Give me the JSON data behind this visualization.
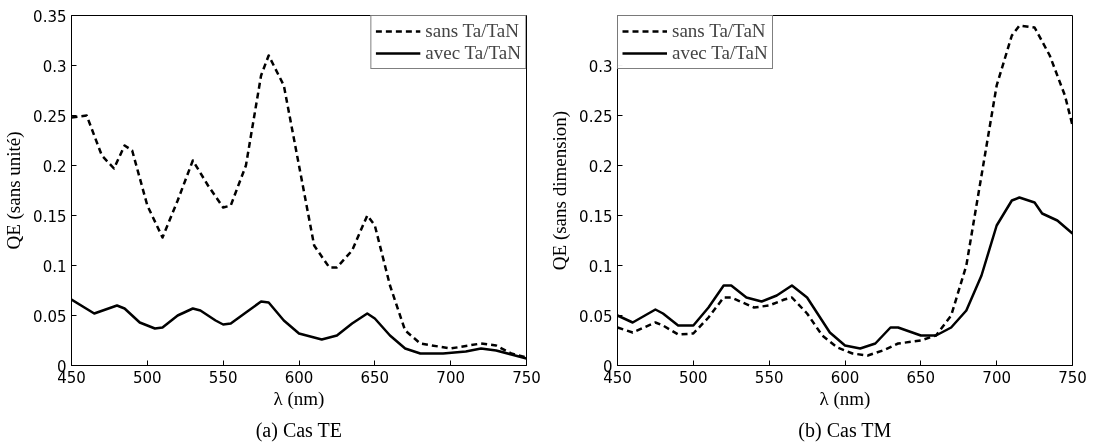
{
  "chart_data": [
    {
      "type": "line",
      "title": "(a) Cas TE",
      "xlabel": "λ (nm)",
      "ylabel": "QE (sans unité)",
      "xlim": [
        450,
        750
      ],
      "ylim": [
        0,
        0.35
      ],
      "xticks": [
        450,
        500,
        550,
        600,
        650,
        700,
        750
      ],
      "yticks": [
        0,
        0.05,
        0.1,
        0.15,
        0.2,
        0.25,
        0.3,
        0.35
      ],
      "grid": false,
      "legend": "top right",
      "series": [
        {
          "name": "sans Ta/TaN",
          "color": "#000000",
          "line_style": "dashed",
          "x": [
            450,
            460,
            470,
            478,
            485,
            490,
            500,
            510,
            520,
            530,
            540,
            550,
            555,
            565,
            575,
            580,
            590,
            600,
            610,
            620,
            625,
            635,
            645,
            650,
            660,
            670,
            680,
            700,
            720,
            730,
            740,
            750
          ],
          "values": [
            0.248,
            0.25,
            0.21,
            0.197,
            0.22,
            0.215,
            0.16,
            0.128,
            0.165,
            0.205,
            0.18,
            0.158,
            0.16,
            0.2,
            0.29,
            0.31,
            0.28,
            0.2,
            0.12,
            0.098,
            0.098,
            0.115,
            0.15,
            0.14,
            0.08,
            0.035,
            0.022,
            0.017,
            0.022,
            0.02,
            0.012,
            0.008
          ]
        },
        {
          "name": "avec Ta/TaN",
          "color": "#000000",
          "line_style": "solid",
          "x": [
            450,
            465,
            480,
            485,
            495,
            505,
            510,
            520,
            530,
            535,
            545,
            550,
            555,
            565,
            575,
            580,
            590,
            600,
            615,
            625,
            635,
            645,
            650,
            660,
            670,
            680,
            695,
            710,
            720,
            730,
            740,
            750
          ],
          "values": [
            0.066,
            0.052,
            0.06,
            0.057,
            0.043,
            0.037,
            0.038,
            0.05,
            0.057,
            0.055,
            0.045,
            0.041,
            0.042,
            0.053,
            0.064,
            0.063,
            0.045,
            0.032,
            0.026,
            0.03,
            0.042,
            0.052,
            0.047,
            0.03,
            0.017,
            0.012,
            0.012,
            0.014,
            0.017,
            0.015,
            0.011,
            0.007
          ]
        }
      ]
    },
    {
      "type": "line",
      "title": "(b) Cas TM",
      "xlabel": "λ (nm)",
      "ylabel": "QE (sans dimension)",
      "xlim": [
        450,
        750
      ],
      "ylim": [
        0,
        0.35
      ],
      "xticks": [
        450,
        500,
        550,
        600,
        650,
        700,
        750
      ],
      "yticks": [
        0,
        0.05,
        0.1,
        0.15,
        0.2,
        0.25,
        0.3
      ],
      "grid": false,
      "legend": "top left",
      "series": [
        {
          "name": "sans Ta/TaN",
          "color": "#000000",
          "line_style": "dashed",
          "x": [
            450,
            460,
            475,
            480,
            490,
            500,
            510,
            520,
            525,
            540,
            550,
            560,
            565,
            575,
            585,
            595,
            605,
            615,
            625,
            635,
            650,
            660,
            670,
            680,
            690,
            700,
            710,
            715,
            725,
            735,
            745,
            750
          ],
          "values": [
            0.038,
            0.033,
            0.043,
            0.04,
            0.031,
            0.032,
            0.048,
            0.068,
            0.068,
            0.058,
            0.06,
            0.066,
            0.068,
            0.052,
            0.03,
            0.018,
            0.012,
            0.01,
            0.015,
            0.022,
            0.025,
            0.03,
            0.05,
            0.1,
            0.19,
            0.28,
            0.33,
            0.34,
            0.338,
            0.31,
            0.27,
            0.24
          ]
        },
        {
          "name": "avec Ta/TaN",
          "color": "#000000",
          "line_style": "solid",
          "x": [
            450,
            460,
            475,
            480,
            490,
            500,
            510,
            520,
            525,
            535,
            545,
            555,
            565,
            575,
            590,
            600,
            610,
            620,
            630,
            635,
            650,
            660,
            670,
            680,
            690,
            700,
            710,
            715,
            725,
            730,
            740,
            750
          ],
          "values": [
            0.05,
            0.043,
            0.056,
            0.052,
            0.04,
            0.04,
            0.058,
            0.08,
            0.08,
            0.068,
            0.064,
            0.07,
            0.08,
            0.068,
            0.033,
            0.02,
            0.017,
            0.022,
            0.038,
            0.038,
            0.03,
            0.03,
            0.038,
            0.055,
            0.09,
            0.14,
            0.165,
            0.168,
            0.163,
            0.152,
            0.145,
            0.132
          ]
        }
      ]
    }
  ]
}
